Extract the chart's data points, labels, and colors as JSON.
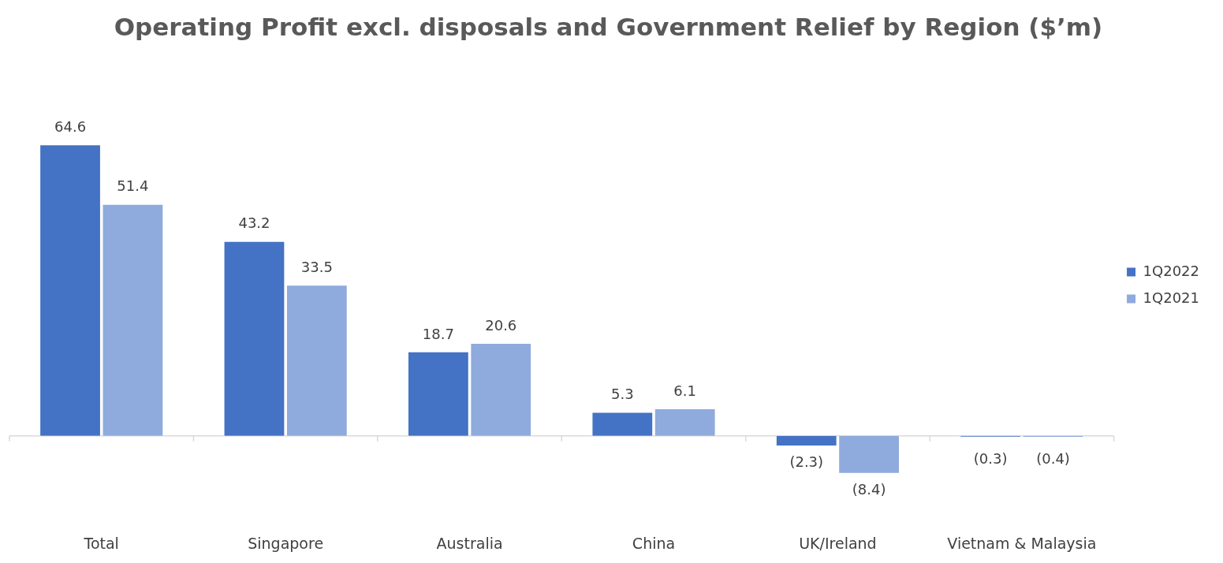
{
  "chart_data": {
    "type": "bar",
    "title": "Operating Profit excl. disposals and Government Relief by Region ($’m)",
    "categories": [
      "Total",
      "Singapore",
      "Australia",
      "China",
      "UK/Ireland",
      "Vietnam & Malaysia"
    ],
    "series": [
      {
        "name": "1Q2022",
        "color": "#4472c4",
        "values": [
          64.6,
          43.2,
          18.7,
          5.3,
          -2.3,
          -0.3
        ],
        "value_labels": [
          "64.6",
          "43.2",
          "18.7",
          "5.3",
          "(2.3)",
          "(0.3)"
        ]
      },
      {
        "name": "1Q2021",
        "color": "#8faadc",
        "values": [
          51.4,
          33.5,
          20.6,
          6.1,
          -8.4,
          -0.4
        ],
        "value_labels": [
          "51.4",
          "33.5",
          "20.6",
          "6.1",
          "(8.4)",
          "(0.4)"
        ]
      }
    ],
    "tick_labels": "x",
    "grid": false,
    "legend": "right"
  }
}
